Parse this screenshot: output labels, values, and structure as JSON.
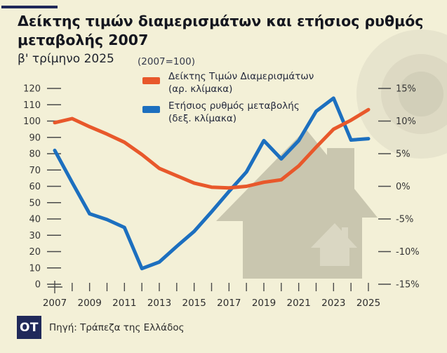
{
  "header": {
    "title": "Δείκτης τιμών διαμερισμάτων και ετήσιος ρυθμός μεταβολής 2007",
    "subtitle": "β' τρίμηνο 2025",
    "base_note": "(2007=100)"
  },
  "legend": {
    "series1": {
      "label": "Δείκτης Τιμών Διαμερισμάτων",
      "sublabel": "(αρ. κλίμακα)",
      "color": "#e8582b"
    },
    "series2": {
      "label": "Ετήσιος ρυθμός μεταβολής",
      "sublabel": "(δεξ. κλίμακα)",
      "color": "#1c6fbf"
    }
  },
  "footer": {
    "logo": "OT",
    "source": "Πηγή: Τράπεζα της Ελλάδος"
  },
  "colors": {
    "background": "#f3f0d7",
    "accent_navy": "#20295a",
    "index_orange": "#e8582b",
    "rate_blue": "#1c6fbf",
    "axis_text": "#353535",
    "watermark_house": "#c9c6af",
    "watermark_small_house": "#dad7c3"
  },
  "chart_data": {
    "type": "line",
    "title": "Δείκτης τιμών διαμερισμάτων και ετήσιος ρυθμός μεταβολής 2007",
    "subtitle": "β' τρίμηνο 2025 (2007=100)",
    "x": [
      2007,
      2008,
      2009,
      2010,
      2011,
      2012,
      2013,
      2014,
      2015,
      2016,
      2017,
      2018,
      2019,
      2020,
      2021,
      2022,
      2023,
      2024,
      2025
    ],
    "x_labeled_ticks": [
      2007,
      2009,
      2011,
      2013,
      2015,
      2017,
      2019,
      2021,
      2023,
      2025
    ],
    "series": [
      {
        "name": "Δείκτης Τιμών Διαμερισμάτων (αρ. κλίμακα)",
        "scale": "left",
        "color": "#e8582b",
        "values": [
          99,
          101.5,
          96.5,
          92,
          87,
          79.5,
          71,
          66.5,
          62,
          59.5,
          59,
          60,
          62.5,
          64,
          72.5,
          84,
          95,
          100.5,
          107
        ]
      },
      {
        "name": "Ετήσιος ρυθμός μεταβολής % (δεξ. κλίμακα)",
        "scale": "right",
        "color": "#1c6fbf",
        "values": [
          5.5,
          0.6,
          -4.2,
          -5.1,
          -6.3,
          -12.6,
          -11.6,
          -9.2,
          -6.9,
          -3.9,
          -0.8,
          2.2,
          7.0,
          4.2,
          7.0,
          11.5,
          13.5,
          7.1,
          7.3
        ]
      }
    ],
    "left_axis": {
      "min": 0,
      "max": 120,
      "step": 10,
      "tick_labels": [
        "0",
        "10",
        "20",
        "30",
        "40",
        "50",
        "60",
        "70",
        "80",
        "90",
        "100",
        "110",
        "120"
      ]
    },
    "right_axis": {
      "min": -15,
      "max": 15,
      "step": 5,
      "tick_labels": [
        "15%",
        "10%",
        "5%",
        "0%",
        "-5%",
        "-10%",
        "-15%"
      ]
    },
    "grid": false,
    "legend_position": "top"
  }
}
